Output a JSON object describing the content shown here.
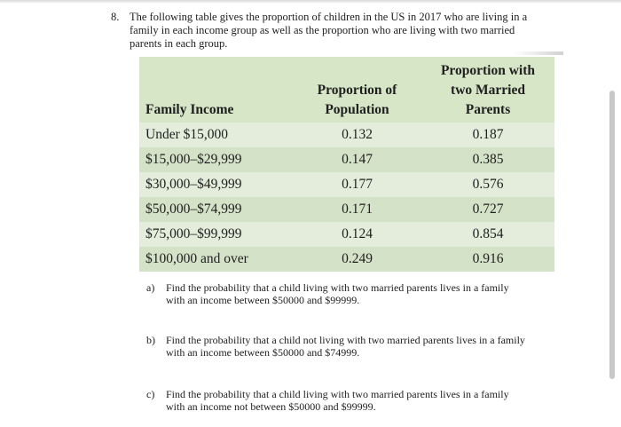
{
  "question": {
    "number": "8.",
    "intro": "The following table gives the proportion of children in the US in 2017 who are living in a family in each income group as well as the proportion who are living with two married parents in each group."
  },
  "table": {
    "headers": {
      "income": "Family Income",
      "population": "Proportion of Population",
      "married": "Proportion with two Married Parents"
    },
    "rows": [
      {
        "income": "Under $15,000",
        "population": "0.132",
        "married": "0.187"
      },
      {
        "income": "$15,000–$29,999",
        "population": "0.147",
        "married": "0.385"
      },
      {
        "income": "$30,000–$49,999",
        "population": "0.177",
        "married": "0.576"
      },
      {
        "income": "$50,000–$74,999",
        "population": "0.171",
        "married": "0.727"
      },
      {
        "income": "$75,000–$99,999",
        "population": "0.124",
        "married": "0.854"
      },
      {
        "income": "$100,000 and over",
        "population": "0.249",
        "married": "0.916"
      }
    ]
  },
  "parts": [
    {
      "label": "a)",
      "text": "Find the probability that a child living with two married parents lives in a family with an income between $50000 and $99999."
    },
    {
      "label": "b)",
      "text": "Find the probability that a child not living with two married parents lives in a family with an income between $50000 and $74999."
    },
    {
      "label": "c)",
      "text": "Find the probability that a child living with two married parents lives in a family with an income not between $50000 and $99999."
    }
  ]
}
